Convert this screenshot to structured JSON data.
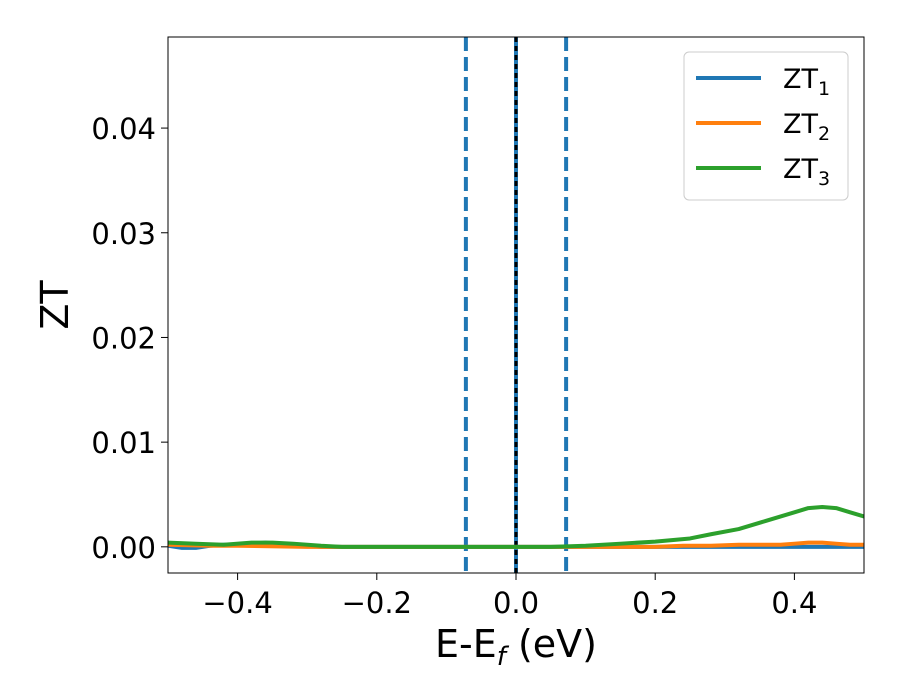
{
  "chart_data": {
    "type": "line",
    "xlabel": "E-E",
    "xlabel_sub": "f",
    "xlabel_unit": " (eV)",
    "ylabel": "ZT",
    "xlim": [
      -0.5,
      0.5
    ],
    "ylim": [
      -0.0025,
      0.0487
    ],
    "x_ticks": [
      -0.4,
      -0.2,
      0.0,
      0.2,
      0.4
    ],
    "x_tick_labels": [
      "−0.4",
      "−0.2",
      "0.0",
      "0.2",
      "0.4"
    ],
    "y_ticks": [
      0.0,
      0.01,
      0.02,
      0.03,
      0.04
    ],
    "y_tick_labels": [
      "0.00",
      "0.01",
      "0.02",
      "0.03",
      "0.04"
    ],
    "grid": false,
    "legend_position": "top-right",
    "vertical_lines": [
      {
        "x": -0.072,
        "color": "#1f77b4",
        "style": "dashed"
      },
      {
        "x": 0.0,
        "color": "#1f77b4",
        "style": "solid"
      },
      {
        "x": 0.0,
        "color": "#000000",
        "style": "dotted"
      },
      {
        "x": 0.072,
        "color": "#1f77b4",
        "style": "dashed"
      }
    ],
    "series": [
      {
        "name": "ZT",
        "sub": "1",
        "color": "#1f77b4",
        "points": [
          [
            -0.5,
            0.0001
          ],
          [
            -0.48,
            -0.0001
          ],
          [
            -0.46,
            -0.0001
          ],
          [
            -0.44,
            0.0001
          ],
          [
            -0.42,
            0.0002
          ],
          [
            -0.4,
            0.0002
          ],
          [
            -0.38,
            0.0003
          ],
          [
            -0.36,
            0.0004
          ],
          [
            -0.34,
            0.0003
          ],
          [
            -0.32,
            0.0002
          ],
          [
            -0.3,
            0.0001
          ],
          [
            -0.28,
            0.0
          ],
          [
            -0.2,
            0.0
          ],
          [
            0.0,
            0.0
          ],
          [
            0.2,
            0.0
          ],
          [
            0.5,
            0.0
          ]
        ]
      },
      {
        "name": "ZT",
        "sub": "2",
        "color": "#ff7f0e",
        "points": [
          [
            -0.5,
            0.0002
          ],
          [
            -0.44,
            0.0001
          ],
          [
            -0.4,
            0.0001
          ],
          [
            -0.3,
            0.0
          ],
          [
            -0.2,
            0.0
          ],
          [
            0.0,
            0.0
          ],
          [
            0.1,
            0.0
          ],
          [
            0.2,
            0.0
          ],
          [
            0.24,
            0.0001
          ],
          [
            0.28,
            0.0001
          ],
          [
            0.32,
            0.0002
          ],
          [
            0.36,
            0.0002
          ],
          [
            0.38,
            0.0002
          ],
          [
            0.4,
            0.0003
          ],
          [
            0.42,
            0.0004
          ],
          [
            0.44,
            0.0004
          ],
          [
            0.46,
            0.0003
          ],
          [
            0.48,
            0.0002
          ],
          [
            0.5,
            0.0002
          ]
        ]
      },
      {
        "name": "ZT",
        "sub": "3",
        "color": "#2ca02c",
        "points": [
          [
            -0.5,
            0.0004
          ],
          [
            -0.46,
            0.0003
          ],
          [
            -0.42,
            0.0002
          ],
          [
            -0.38,
            0.0004
          ],
          [
            -0.35,
            0.0004
          ],
          [
            -0.32,
            0.0003
          ],
          [
            -0.28,
            0.0001
          ],
          [
            -0.25,
            0.0
          ],
          [
            -0.2,
            0.0
          ],
          [
            -0.1,
            0.0
          ],
          [
            0.0,
            0.0
          ],
          [
            0.05,
            0.0
          ],
          [
            0.1,
            0.0001
          ],
          [
            0.15,
            0.0003
          ],
          [
            0.2,
            0.0005
          ],
          [
            0.25,
            0.0008
          ],
          [
            0.28,
            0.0012
          ],
          [
            0.32,
            0.0017
          ],
          [
            0.36,
            0.0025
          ],
          [
            0.4,
            0.0033
          ],
          [
            0.42,
            0.0037
          ],
          [
            0.44,
            0.0038
          ],
          [
            0.46,
            0.0037
          ],
          [
            0.48,
            0.0033
          ],
          [
            0.5,
            0.0029
          ]
        ]
      }
    ]
  }
}
